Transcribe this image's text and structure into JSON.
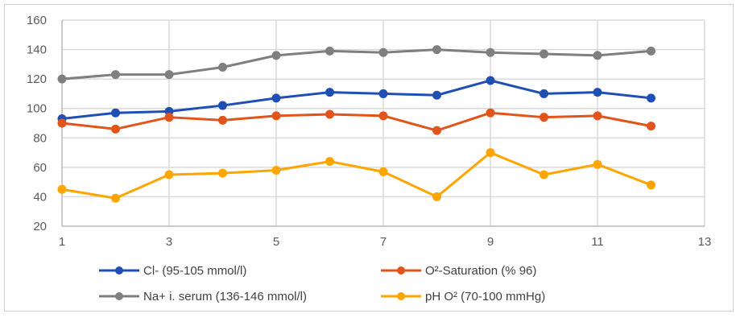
{
  "chart_data": {
    "type": "line",
    "title": "",
    "xlabel": "",
    "ylabel": "",
    "xlim": [
      1,
      13
    ],
    "ylim": [
      20,
      160
    ],
    "x_ticks": [
      1,
      3,
      5,
      7,
      9,
      11,
      13
    ],
    "x_tick_labels": [
      "1",
      "3",
      "5",
      "7",
      "9",
      "11",
      "13"
    ],
    "y_ticks": [
      20,
      40,
      60,
      80,
      100,
      120,
      140,
      160
    ],
    "y_tick_labels": [
      "20",
      "40",
      "60",
      "80",
      "100",
      "120",
      "140",
      "160"
    ],
    "grid": true,
    "legend_position": "bottom",
    "x": [
      1,
      2,
      3,
      4,
      5,
      6,
      7,
      8,
      9,
      10,
      11,
      12
    ],
    "series": [
      {
        "name": "Cl- (95-105 mmol/l)",
        "color": "#1f4fb4",
        "values": [
          93,
          97,
          98,
          102,
          107,
          111,
          110,
          109,
          119,
          110,
          111,
          107
        ]
      },
      {
        "name": "O²-Saturation (% 96)",
        "color": "#e2541a",
        "values": [
          90,
          86,
          94,
          92,
          95,
          96,
          95,
          85,
          97,
          94,
          95,
          88
        ]
      },
      {
        "name": "Na+ i. serum (136-146 mmol/l)",
        "color": "#7f7f7f",
        "values": [
          120,
          123,
          123,
          128,
          136,
          139,
          138,
          140,
          138,
          137,
          136,
          139
        ]
      },
      {
        "name": "pH O²  (70-100 mmHg)",
        "color": "#ffa500",
        "values": [
          45,
          39,
          55,
          56,
          58,
          64,
          57,
          40,
          70,
          55,
          62,
          48
        ]
      }
    ]
  }
}
